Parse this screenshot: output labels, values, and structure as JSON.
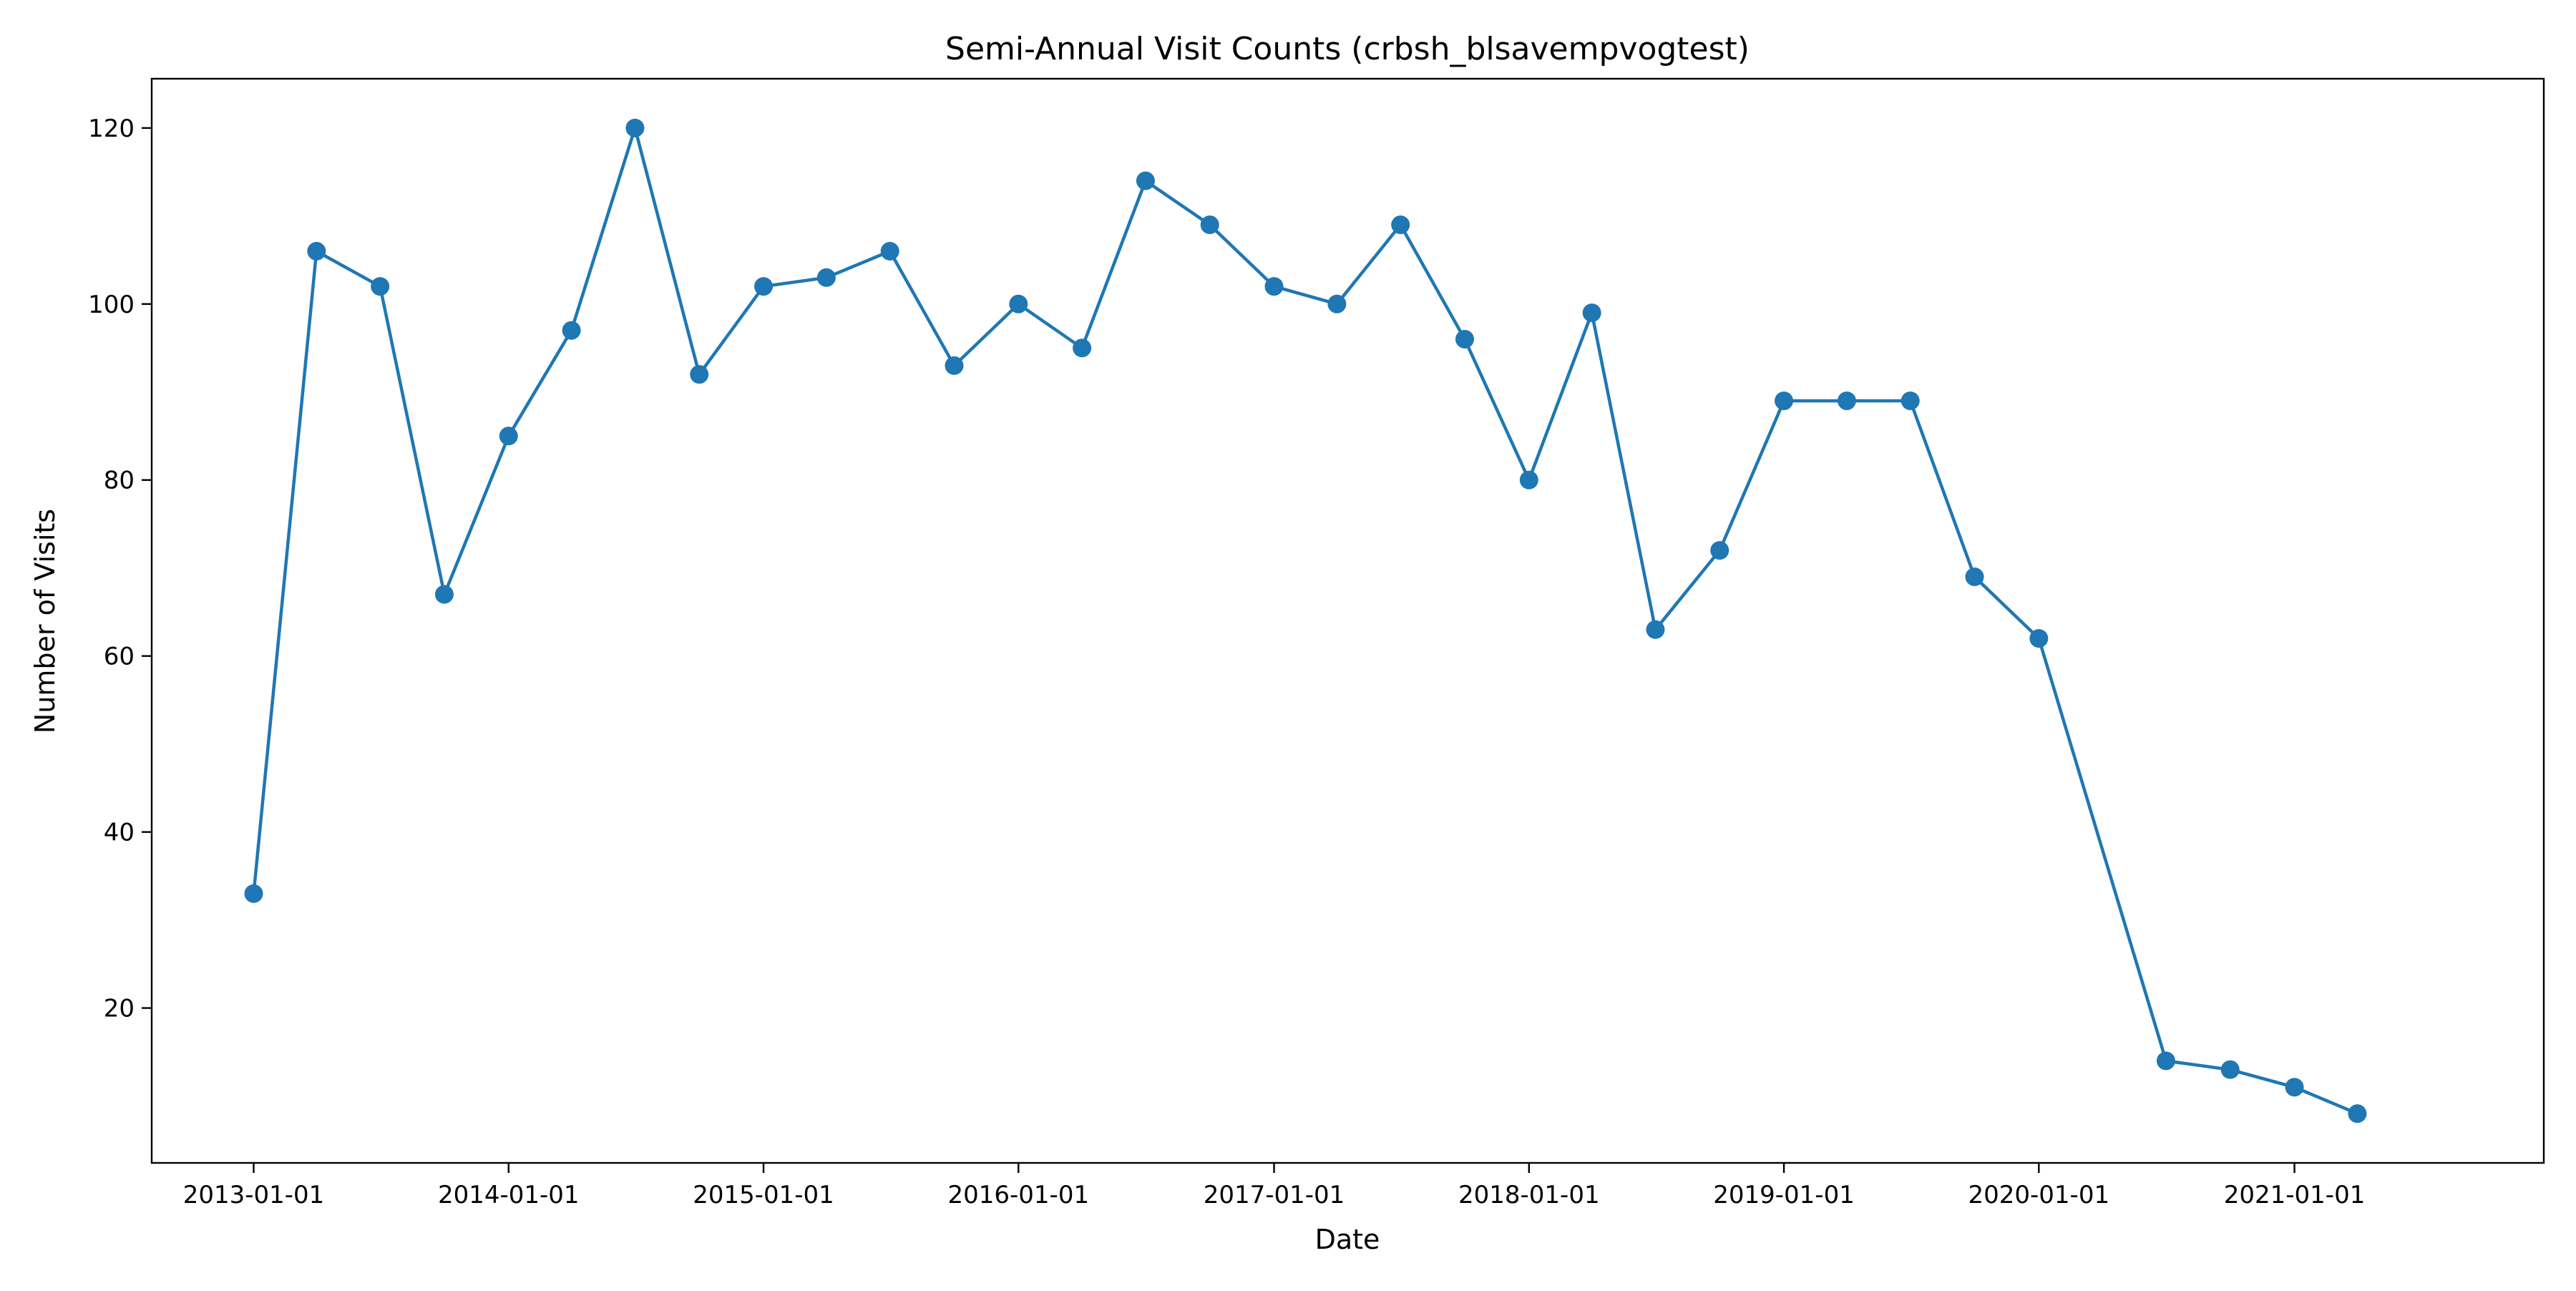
{
  "chart_data": {
    "type": "line",
    "title": "Semi-Annual Visit Counts (crbsh_blsavempvogtest)",
    "xlabel": "Date",
    "ylabel": "Number of Visits",
    "x_tick_labels": [
      "2013-01-01",
      "2014-01-01",
      "2015-01-01",
      "2016-01-01",
      "2017-01-01",
      "2018-01-01",
      "2019-01-01",
      "2020-01-01",
      "2021-01-01"
    ],
    "y_tick_labels": [
      "20",
      "40",
      "60",
      "80",
      "100",
      "120"
    ],
    "ylim": [
      2.4,
      125.6
    ],
    "xlim": [
      "2012-08-08",
      "2021-12-24"
    ],
    "grid": false,
    "legend": false,
    "series_color": "#1f77b4",
    "series": [
      {
        "x": [
          "2013-01-01",
          "2013-04-01",
          "2013-07-01",
          "2013-10-01",
          "2014-01-01",
          "2014-04-01",
          "2014-07-01",
          "2014-10-01",
          "2015-01-01",
          "2015-04-01",
          "2015-07-01",
          "2015-10-01",
          "2016-01-01",
          "2016-04-01",
          "2016-07-01",
          "2016-10-01",
          "2017-01-01",
          "2017-04-01",
          "2017-07-01",
          "2017-10-01",
          "2018-01-01",
          "2018-04-01",
          "2018-07-01",
          "2018-10-01",
          "2019-01-01",
          "2019-04-01",
          "2019-07-01",
          "2019-10-01",
          "2020-01-01",
          "2020-07-01",
          "2020-10-01",
          "2021-01-01",
          "2021-04-01"
        ],
        "values": [
          33,
          106,
          102,
          67,
          85,
          97,
          120,
          92,
          102,
          103,
          106,
          93,
          100,
          95,
          114,
          109,
          102,
          100,
          109,
          96,
          80,
          99,
          63,
          72,
          89,
          89,
          89,
          69,
          62,
          14,
          13,
          11,
          8
        ]
      }
    ]
  }
}
